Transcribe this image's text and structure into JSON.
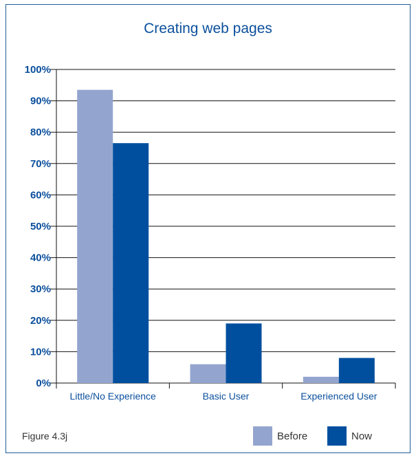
{
  "chart_data": {
    "type": "bar",
    "title": "Creating web pages",
    "categories": [
      "Little/No Experience",
      "Basic User",
      "Experienced User"
    ],
    "series": [
      {
        "name": "Before",
        "color": "#93a5cf",
        "values": [
          93.5,
          6,
          2
        ]
      },
      {
        "name": "Now",
        "color": "#004f9f",
        "values": [
          76.5,
          19,
          8
        ]
      }
    ],
    "ylim": [
      0,
      100
    ],
    "yticks": [
      "0%",
      "10%",
      "20%",
      "30%",
      "40%",
      "50%",
      "60%",
      "70%",
      "80%",
      "90%",
      "100%"
    ],
    "grid": true,
    "legend": "bottom-right"
  },
  "caption": "Figure 4.3j"
}
